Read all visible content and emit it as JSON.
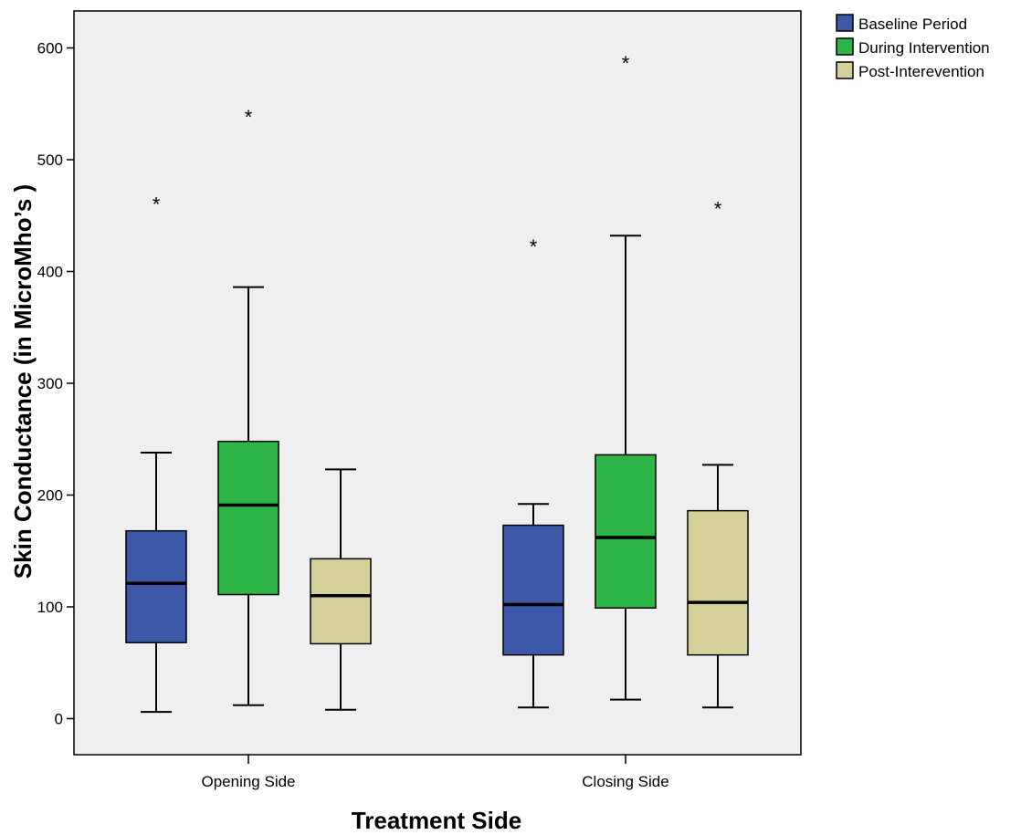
{
  "chart_data": {
    "type": "boxplot",
    "xlabel": "Treatment Side",
    "ylabel": "Skin Conductance (in MicroMho’s  )",
    "ylim": [
      -32,
      632
    ],
    "yticks": [
      0,
      100,
      200,
      300,
      400,
      500,
      600
    ],
    "categories": [
      "Opening Side",
      "Closing Side"
    ],
    "legend_position": "top-right, outside plot",
    "plot_background": "#efefef",
    "series": [
      {
        "name": "Baseline Period",
        "color": "#3d58a8",
        "boxes": [
          {
            "min": 6,
            "q1": 68,
            "median": 121,
            "q3": 168,
            "max": 238,
            "outliers": [
              462
            ]
          },
          {
            "min": 10,
            "q1": 57,
            "median": 102,
            "q3": 173,
            "max": 192,
            "outliers": [
              424
            ]
          }
        ]
      },
      {
        "name": "During Intervention",
        "color": "#2eb548",
        "boxes": [
          {
            "min": 12,
            "q1": 111,
            "median": 191,
            "q3": 248,
            "max": 386,
            "outliers": [
              540
            ]
          },
          {
            "min": 17,
            "q1": 99,
            "median": 162,
            "q3": 236,
            "max": 432,
            "outliers": [
              588
            ]
          }
        ]
      },
      {
        "name": "Post-Interevention",
        "color": "#d5cf99",
        "boxes": [
          {
            "min": 8,
            "q1": 67,
            "median": 110,
            "q3": 143,
            "max": 223,
            "outliers": []
          },
          {
            "min": 10,
            "q1": 57,
            "median": 104,
            "q3": 186,
            "max": 227,
            "outliers": [
              458
            ]
          }
        ]
      }
    ],
    "outlier_marker": "*"
  }
}
